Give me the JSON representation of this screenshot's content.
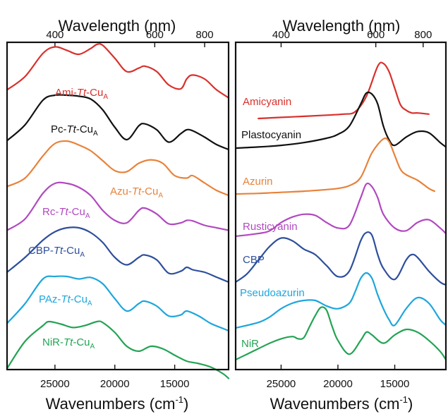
{
  "chart_data": [
    {
      "type": "line",
      "panel": "left",
      "xlabel": "Wavenumbers (cm",
      "xlabel_sup": "-1",
      "xlabel_close": ")",
      "top_axis_label": "Wavelength (nm)",
      "x_ticks": [
        25000,
        20000,
        15000
      ],
      "x_tick_labels": [
        "25000",
        "20000",
        "15000"
      ],
      "top_ticks_nm": [
        400,
        600,
        800
      ],
      "top_tick_labels": [
        "400",
        "600",
        "800"
      ],
      "xlim": [
        29000,
        10500
      ],
      "y_offset_axis": true,
      "series": [
        {
          "name": "Ami-Tt-CuA",
          "label_parts": [
            "Ami-",
            "Tt",
            "-Cu",
            "A"
          ],
          "color": "#d9302c",
          "x": [
            29000,
            27500,
            26000,
            25000,
            24000,
            23000,
            22000,
            21500,
            21000,
            20000,
            19000,
            18000,
            17500,
            16500,
            15500,
            14500,
            14000,
            13500,
            12500,
            11500,
            10500
          ],
          "y": [
            0.08,
            0.35,
            0.82,
            0.95,
            0.88,
            0.8,
            0.92,
            1.0,
            0.98,
            0.72,
            0.45,
            0.52,
            0.56,
            0.45,
            0.18,
            0.1,
            0.3,
            0.38,
            0.3,
            0.08,
            -0.08
          ]
        },
        {
          "name": "Pc-Tt-CuA",
          "label_parts": [
            "Pc-",
            "Tt",
            "-Cu",
            "A"
          ],
          "color": "#111111",
          "x": [
            29000,
            27500,
            26000,
            25000,
            24000,
            23000,
            22000,
            21000,
            20000,
            19000,
            18000,
            17500,
            16500,
            15500,
            14500,
            14000,
            13500,
            12500,
            11500,
            10500
          ],
          "y": [
            0.08,
            0.4,
            0.9,
            1.0,
            1.0,
            0.98,
            0.92,
            0.7,
            0.35,
            0.1,
            0.38,
            0.42,
            0.3,
            0.05,
            0.22,
            0.3,
            0.28,
            0.15,
            0.0,
            -0.1
          ]
        },
        {
          "name": "Azu-Tt-CuA",
          "label_parts": [
            "Azu-",
            "Tt",
            "-Cu",
            "A"
          ],
          "color": "#e8823a",
          "x": [
            29000,
            27500,
            26000,
            25000,
            24000,
            23000,
            22000,
            21000,
            20000,
            19000,
            18000,
            17000,
            16000,
            15000,
            14000,
            13500,
            12500,
            11500,
            10500
          ],
          "y": [
            0.08,
            0.25,
            0.7,
            0.95,
            1.0,
            0.92,
            0.8,
            0.6,
            0.4,
            0.38,
            0.55,
            0.62,
            0.55,
            0.3,
            0.25,
            0.3,
            0.15,
            0.0,
            -0.1
          ]
        },
        {
          "name": "Rc-Tt-CuA",
          "label_parts": [
            "Rc-",
            "Tt",
            "-Cu",
            "A"
          ],
          "color": "#b149c0",
          "x": [
            29000,
            27500,
            26000,
            25000,
            24000,
            23000,
            22000,
            21000,
            20000,
            19000,
            18000,
            17500,
            16500,
            15500,
            14500,
            14000,
            13500,
            12500,
            11500,
            10500
          ],
          "y": [
            0.05,
            0.28,
            0.8,
            1.0,
            1.0,
            0.92,
            0.75,
            0.45,
            0.25,
            0.2,
            0.45,
            0.5,
            0.38,
            0.18,
            0.2,
            0.25,
            0.24,
            0.15,
            0.1,
            0.05
          ]
        },
        {
          "name": "CBP-Tt-CuA",
          "label_parts": [
            "CBP-",
            "Tt",
            "-Cu",
            "A"
          ],
          "color": "#2e4f9c",
          "x": [
            29000,
            27500,
            26000,
            25000,
            24000,
            23000,
            22000,
            21000,
            20000,
            19000,
            18000,
            17500,
            16500,
            15500,
            14500,
            14000,
            13500,
            12500,
            11500,
            10500
          ],
          "y": [
            0.1,
            0.4,
            0.75,
            0.92,
            1.0,
            1.0,
            0.9,
            0.7,
            0.4,
            0.25,
            0.4,
            0.45,
            0.35,
            0.08,
            0.12,
            0.2,
            0.15,
            0.1,
            0.0,
            -0.1
          ]
        },
        {
          "name": "PAz-Tt-CuA",
          "label_parts": [
            "PAz-",
            "Tt",
            "-Cu",
            "A"
          ],
          "color": "#1ea6dc",
          "x": [
            29000,
            27500,
            26000,
            25000,
            24000,
            23000,
            22000,
            21000,
            20000,
            19000,
            18000,
            17500,
            16500,
            15500,
            14500,
            14000,
            13000,
            12000,
            11000,
            10500
          ],
          "y": [
            0.05,
            0.45,
            0.95,
            1.0,
            1.0,
            0.95,
            0.98,
            0.85,
            0.55,
            0.3,
            0.45,
            0.5,
            0.4,
            0.2,
            0.22,
            0.3,
            0.2,
            0.05,
            -0.05,
            -0.1
          ]
        },
        {
          "name": "NiR-Tt-CuA",
          "label_parts": [
            "NiR-",
            "Tt",
            "-Cu",
            "A"
          ],
          "color": "#24a354",
          "x": [
            29000,
            27500,
            26000,
            25500,
            24500,
            23500,
            22500,
            21500,
            21000,
            20000,
            19000,
            18000,
            17000,
            16000,
            15000,
            14000,
            13000,
            12000,
            11000,
            10500
          ],
          "y": [
            0.05,
            0.6,
            0.92,
            1.0,
            0.95,
            0.88,
            0.92,
            1.0,
            0.98,
            0.78,
            0.5,
            0.4,
            0.5,
            0.45,
            0.32,
            0.2,
            0.15,
            0.08,
            -0.05,
            -0.15
          ]
        }
      ]
    },
    {
      "type": "line",
      "panel": "right",
      "xlabel": "Wavenumbers (cm",
      "xlabel_sup": "-1",
      "xlabel_close": ")",
      "top_axis_label": "Wavelength (nm)",
      "x_ticks": [
        25000,
        20000,
        15000
      ],
      "x_tick_labels": [
        "25000",
        "20000",
        "15000"
      ],
      "top_ticks_nm": [
        400,
        600,
        800
      ],
      "top_tick_labels": [
        "400",
        "600",
        "800"
      ],
      "xlim": [
        29000,
        10500
      ],
      "y_offset_axis": true,
      "series": [
        {
          "name": "Amicyanin",
          "color": "#d9302c",
          "x": [
            27000,
            24000,
            21000,
            19500,
            18500,
            17500,
            16500,
            16000,
            15500,
            15000,
            14500,
            14000,
            13500,
            13000,
            12000
          ],
          "y": [
            0.0,
            0.03,
            0.06,
            0.08,
            0.12,
            0.4,
            0.95,
            1.0,
            0.85,
            0.55,
            0.25,
            0.15,
            0.1,
            0.1,
            0.08
          ]
        },
        {
          "name": "Plastocyanin",
          "color": "#111111",
          "x": [
            29000,
            27000,
            25000,
            23000,
            21000,
            20000,
            19000,
            18000,
            17500,
            17000,
            16500,
            16000,
            15500,
            15000,
            14000,
            13000,
            12000,
            11000,
            10500
          ],
          "y": [
            0.0,
            0.02,
            0.05,
            0.1,
            0.18,
            0.25,
            0.4,
            0.8,
            1.0,
            0.98,
            0.8,
            0.4,
            0.15,
            0.05,
            0.2,
            0.3,
            0.28,
            0.1,
            0.02
          ]
        },
        {
          "name": "Azurin",
          "color": "#e8823a",
          "x": [
            29000,
            27000,
            25000,
            23000,
            21000,
            20000,
            19000,
            18000,
            17000,
            16000,
            15500,
            15000,
            14500,
            14000,
            13000,
            12000,
            11500
          ],
          "y": [
            0.0,
            0.01,
            0.03,
            0.05,
            0.08,
            0.1,
            0.15,
            0.3,
            0.75,
            1.0,
            0.95,
            0.7,
            0.45,
            0.35,
            0.25,
            0.1,
            0.05
          ]
        },
        {
          "name": "Rusticyanin",
          "color": "#b149c0",
          "x": [
            29000,
            27000,
            26000,
            25000,
            24000,
            23000,
            22000,
            21000,
            20000,
            19000,
            18000,
            17500,
            17000,
            16500,
            16000,
            15000,
            14000,
            13000,
            12000,
            11000,
            10500
          ],
          "y": [
            0.0,
            0.05,
            0.1,
            0.25,
            0.35,
            0.4,
            0.38,
            0.25,
            0.15,
            0.2,
            0.7,
            0.95,
            0.9,
            0.7,
            0.4,
            0.15,
            0.1,
            0.25,
            0.3,
            0.15,
            0.05
          ]
        },
        {
          "name": "CBP",
          "color": "#2e4f9c",
          "x": [
            29000,
            28000,
            27000,
            26000,
            25000,
            24000,
            23000,
            22000,
            21000,
            20000,
            19000,
            18000,
            17500,
            17000,
            16500,
            16000,
            15000,
            14000,
            13500,
            13000,
            12000,
            11000,
            10500
          ],
          "y": [
            0.0,
            0.15,
            0.4,
            0.65,
            0.8,
            0.75,
            0.6,
            0.5,
            0.3,
            0.1,
            0.2,
            0.75,
            0.9,
            0.85,
            0.5,
            0.25,
            0.05,
            0.4,
            0.5,
            0.45,
            0.2,
            0.0,
            -0.05
          ]
        },
        {
          "name": "Pseudoazurin",
          "color": "#1ea6dc",
          "x": [
            29000,
            27000,
            26000,
            25000,
            24000,
            23000,
            22000,
            21000,
            20000,
            19000,
            18500,
            18000,
            17500,
            17000,
            16500,
            16000,
            15500,
            15000,
            14000,
            13000,
            12000,
            11000,
            10500
          ],
          "y": [
            0.0,
            0.1,
            0.2,
            0.35,
            0.45,
            0.5,
            0.5,
            0.4,
            0.35,
            0.45,
            0.65,
            0.9,
            1.0,
            0.9,
            0.6,
            0.35,
            0.15,
            0.05,
            0.35,
            0.55,
            0.45,
            0.15,
            0.05
          ]
        },
        {
          "name": "NiR",
          "color": "#24a354",
          "x": [
            29000,
            28000,
            27000,
            26000,
            25000,
            24000,
            23500,
            23000,
            22500,
            22000,
            21500,
            21000,
            20500,
            20000,
            19000,
            18000,
            17500,
            17000,
            16000,
            15000,
            14000,
            13000,
            12000,
            11000,
            10500
          ],
          "y": [
            0.0,
            0.1,
            0.2,
            0.3,
            0.38,
            0.42,
            0.38,
            0.4,
            0.6,
            0.8,
            0.95,
            0.9,
            0.6,
            0.35,
            0.1,
            0.35,
            0.5,
            0.45,
            0.3,
            0.45,
            0.55,
            0.5,
            0.35,
            0.15,
            0.0
          ]
        }
      ]
    }
  ]
}
